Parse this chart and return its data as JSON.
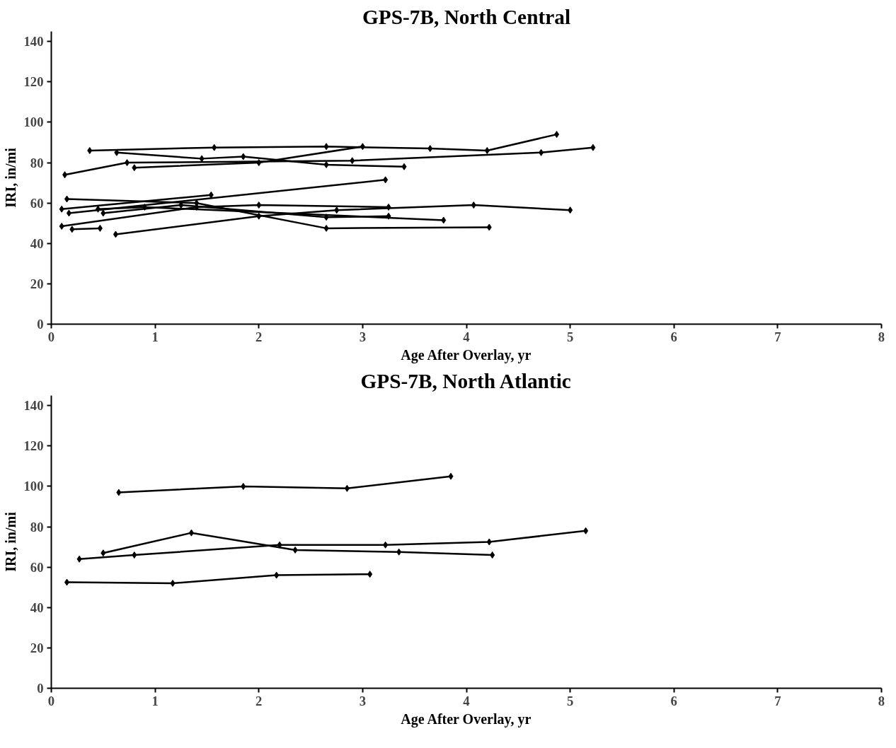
{
  "chart_data": [
    {
      "type": "line",
      "title": "GPS-7B, North Central",
      "xlabel": "Age After Overlay, yr",
      "ylabel": "IRI, in/mi",
      "xlim": [
        0,
        8
      ],
      "ylim": [
        0,
        145
      ],
      "xticks": [
        0,
        1,
        2,
        3,
        4,
        5,
        6,
        7,
        8
      ],
      "yticks": [
        0,
        20,
        40,
        60,
        80,
        100,
        120,
        140
      ],
      "marker": "diamond",
      "line_style": "solid",
      "series": [
        {
          "color": "#000000",
          "x": [
            0.37,
            1.57,
            2.65,
            3.65,
            4.2,
            4.87
          ],
          "values": [
            86,
            87.5,
            88,
            87,
            86,
            94
          ]
        },
        {
          "color": "#000000",
          "x": [
            0.63,
            1.45,
            1.85,
            2.65,
            3.4
          ],
          "values": [
            85,
            82,
            83,
            79,
            78
          ]
        },
        {
          "color": "#000000",
          "x": [
            0.13,
            0.73,
            2.9,
            4.72,
            5.22
          ],
          "values": [
            74,
            80,
            81,
            85,
            87.5
          ]
        },
        {
          "color": "#000000",
          "x": [
            0.8,
            2.0,
            3.0
          ],
          "values": [
            77.5,
            80,
            88
          ]
        },
        {
          "color": "#000000",
          "x": [
            0.15,
            1.4,
            2.65,
            4.22
          ],
          "values": [
            62,
            60,
            47.5,
            48
          ]
        },
        {
          "color": "#000000",
          "x": [
            0.1,
            1.54
          ],
          "values": [
            57,
            64
          ]
        },
        {
          "color": "#000000",
          "x": [
            0.17,
            3.22
          ],
          "values": [
            55,
            71.5
          ]
        },
        {
          "color": "#000000",
          "x": [
            0.1,
            1.4,
            2.0,
            3.25
          ],
          "values": [
            48.5,
            58,
            59,
            58
          ]
        },
        {
          "color": "#000000",
          "x": [
            0.2,
            0.47
          ],
          "values": [
            47,
            47.5
          ]
        },
        {
          "color": "#000000",
          "x": [
            0.62,
            2.0,
            2.75,
            4.07,
            5.0
          ],
          "values": [
            44.5,
            53.5,
            56.5,
            59,
            56.5
          ]
        },
        {
          "color": "#000000",
          "x": [
            0.45,
            0.9,
            3.78
          ],
          "values": [
            57,
            58,
            51.5
          ]
        },
        {
          "color": "#000000",
          "x": [
            0.5,
            1.25,
            2.65,
            3.25
          ],
          "values": [
            55,
            59,
            53,
            53.5
          ]
        }
      ]
    },
    {
      "type": "line",
      "title": "GPS-7B, North Atlantic",
      "xlabel": "Age After Overlay, yr",
      "ylabel": "IRI, in/mi",
      "xlim": [
        0,
        8
      ],
      "ylim": [
        0,
        145
      ],
      "xticks": [
        0,
        1,
        2,
        3,
        4,
        5,
        6,
        7,
        8
      ],
      "yticks": [
        0,
        20,
        40,
        60,
        80,
        100,
        120,
        140
      ],
      "marker": "diamond",
      "line_style": "solid",
      "series": [
        {
          "color": "#000000",
          "x": [
            0.65,
            1.85,
            2.85,
            3.85
          ],
          "values": [
            97,
            100,
            99,
            105
          ]
        },
        {
          "color": "#000000",
          "x": [
            0.5,
            1.35,
            2.35,
            3.35,
            4.25
          ],
          "values": [
            67,
            77,
            68.5,
            67.5,
            66
          ]
        },
        {
          "color": "#000000",
          "x": [
            0.27,
            0.8,
            2.2,
            3.22,
            4.22,
            5.15
          ],
          "values": [
            64,
            66,
            71,
            71,
            72.5,
            78
          ]
        },
        {
          "color": "#000000",
          "x": [
            0.15,
            1.17,
            2.17,
            3.07
          ],
          "values": [
            52.5,
            52,
            56,
            56.5
          ]
        }
      ]
    }
  ]
}
